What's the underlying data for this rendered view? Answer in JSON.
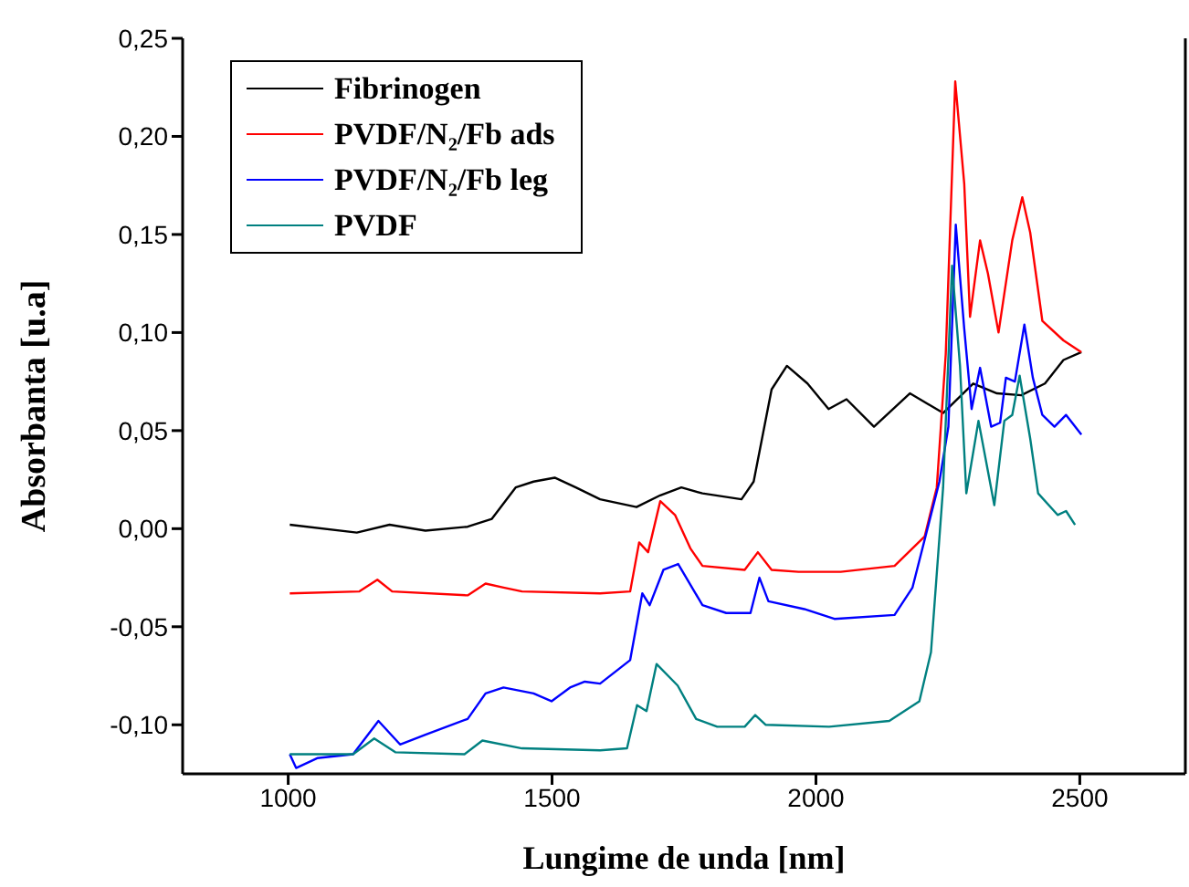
{
  "chart_data": {
    "type": "line",
    "xlabel": "Lungime de unda [nm]",
    "ylabel": "Absorbanta [u.a]",
    "xlim": [
      800,
      2700
    ],
    "ylim": [
      -0.125,
      0.25
    ],
    "xticks": [
      1000,
      1500,
      2000,
      2500
    ],
    "yticks": [
      {
        "value": -0.1,
        "label": "-0,10"
      },
      {
        "value": -0.05,
        "label": "-0,05"
      },
      {
        "value": 0,
        "label": "0,00"
      },
      {
        "value": 0.05,
        "label": "0,05"
      },
      {
        "value": 0.1,
        "label": "0,10"
      },
      {
        "value": 0.15,
        "label": "0,15"
      },
      {
        "value": 0.2,
        "label": "0,20"
      },
      {
        "value": 0.25,
        "label": "0,25"
      }
    ],
    "legend": "top left",
    "marker": "none",
    "grid": false,
    "series": [
      {
        "name": "Fibrinogen",
        "color": "#000000",
        "x": [
          1003,
          1130,
          1192,
          1260,
          1340,
          1386,
          1431,
          1465,
          1505,
          1545,
          1591,
          1660,
          1705,
          1745,
          1785,
          1859,
          1882,
          1916,
          1945,
          1984,
          2024,
          2058,
          2110,
          2178,
          2241,
          2298,
          2343,
          2389,
          2434,
          2469,
          2503
        ],
        "values": [
          0.002,
          -0.002,
          0.002,
          -0.001,
          0.001,
          0.005,
          0.021,
          0.024,
          0.026,
          0.021,
          0.015,
          0.011,
          0.017,
          0.021,
          0.018,
          0.015,
          0.024,
          0.071,
          0.083,
          0.074,
          0.061,
          0.066,
          0.052,
          0.069,
          0.059,
          0.074,
          0.069,
          0.068,
          0.074,
          0.086,
          0.09
        ]
      },
      {
        "name": "PVDF/N₂/Fb ads",
        "color": "#ff0000",
        "x": [
          1003,
          1135,
          1169,
          1197,
          1340,
          1374,
          1408,
          1443,
          1591,
          1648,
          1665,
          1682,
          1705,
          1733,
          1762,
          1785,
          1865,
          1890,
          1916,
          1967,
          2047,
          2149,
          2206,
          2229,
          2246,
          2264,
          2281,
          2292,
          2311,
          2326,
          2346,
          2372,
          2391,
          2406,
          2429,
          2469,
          2503
        ],
        "values": [
          -0.033,
          -0.032,
          -0.026,
          -0.032,
          -0.034,
          -0.028,
          -0.03,
          -0.032,
          -0.033,
          -0.032,
          -0.007,
          -0.012,
          0.014,
          0.007,
          -0.01,
          -0.019,
          -0.021,
          -0.012,
          -0.021,
          -0.022,
          -0.022,
          -0.019,
          -0.004,
          0.021,
          0.089,
          0.228,
          0.176,
          0.108,
          0.147,
          0.13,
          0.1,
          0.147,
          0.169,
          0.151,
          0.106,
          0.096,
          0.09
        ]
      },
      {
        "name": "PVDF/N₂/Fb leg",
        "color": "#0000ff",
        "x": [
          1003,
          1015,
          1055,
          1123,
          1171,
          1212,
          1260,
          1340,
          1374,
          1408,
          1465,
          1499,
          1534,
          1562,
          1591,
          1648,
          1671,
          1685,
          1711,
          1739,
          1785,
          1830,
          1876,
          1893,
          1910,
          1978,
          2035,
          2149,
          2183,
          2234,
          2251,
          2265,
          2281,
          2295,
          2311,
          2332,
          2349,
          2360,
          2377,
          2395,
          2411,
          2429,
          2452,
          2474,
          2503
        ],
        "values": [
          -0.115,
          -0.122,
          -0.117,
          -0.115,
          -0.098,
          -0.11,
          -0.105,
          -0.097,
          -0.084,
          -0.081,
          -0.084,
          -0.088,
          -0.081,
          -0.078,
          -0.079,
          -0.067,
          -0.033,
          -0.039,
          -0.021,
          -0.018,
          -0.039,
          -0.043,
          -0.043,
          -0.025,
          -0.037,
          -0.041,
          -0.046,
          -0.044,
          -0.03,
          0.024,
          0.052,
          0.155,
          0.102,
          0.061,
          0.082,
          0.052,
          0.054,
          0.077,
          0.075,
          0.104,
          0.077,
          0.058,
          0.052,
          0.058,
          0.048
        ]
      },
      {
        "name": "PVDF",
        "color": "#008080",
        "x": [
          1003,
          1123,
          1163,
          1203,
          1334,
          1368,
          1443,
          1591,
          1642,
          1661,
          1679,
          1698,
          1738,
          1773,
          1813,
          1865,
          1885,
          1905,
          2025,
          2139,
          2196,
          2218,
          2241,
          2258,
          2273,
          2285,
          2308,
          2338,
          2357,
          2372,
          2386,
          2406,
          2421,
          2458,
          2474,
          2491
        ],
        "values": [
          -0.115,
          -0.115,
          -0.107,
          -0.114,
          -0.115,
          -0.108,
          -0.112,
          -0.113,
          -0.112,
          -0.09,
          -0.093,
          -0.069,
          -0.08,
          -0.097,
          -0.101,
          -0.101,
          -0.095,
          -0.1,
          -0.101,
          -0.098,
          -0.088,
          -0.063,
          0.021,
          0.134,
          0.083,
          0.018,
          0.055,
          0.012,
          0.055,
          0.058,
          0.078,
          0.046,
          0.018,
          0.007,
          0.009,
          0.002
        ]
      }
    ]
  }
}
